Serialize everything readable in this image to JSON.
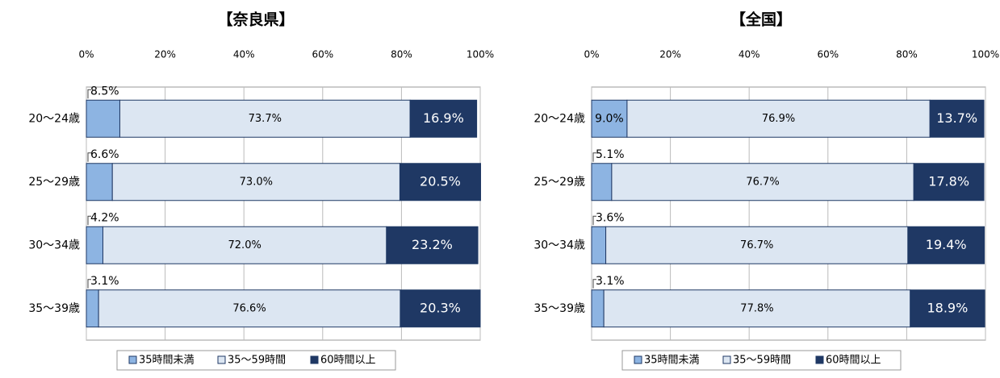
{
  "chart_data": [
    {
      "type": "bar",
      "orientation": "horizontal",
      "stacked": true,
      "title": "【奈良県】",
      "categories": [
        "20～24歳",
        "25～29歳",
        "30～34歳",
        "35～39歳"
      ],
      "xlim": [
        0,
        100
      ],
      "xticks": [
        {
          "value": 0,
          "label": "0%"
        },
        {
          "value": 20,
          "label": "20%"
        },
        {
          "value": 40,
          "label": "40%"
        },
        {
          "value": 60,
          "label": "60%"
        },
        {
          "value": 80,
          "label": "80%"
        },
        {
          "value": 100,
          "label": "100%"
        }
      ],
      "grid": true,
      "legend": "bottom",
      "series": [
        {
          "name": "35時間未満",
          "color": "#8db4e2",
          "values": [
            8.5,
            6.6,
            4.2,
            3.1
          ],
          "value_labels": [
            "8.5%",
            "6.6%",
            "4.2%",
            "3.1%"
          ]
        },
        {
          "name": "35～59時間",
          "color": "#dce6f2",
          "values": [
            73.7,
            73.0,
            72.0,
            76.6
          ],
          "value_labels": [
            "73.7%",
            "73.0%",
            "72.0%",
            "76.6%"
          ]
        },
        {
          "name": "60時間以上",
          "color": "#1f3864",
          "values": [
            16.9,
            20.5,
            23.2,
            20.3
          ],
          "value_labels": [
            "16.9%",
            "20.5%",
            "23.2%",
            "20.3%"
          ]
        }
      ]
    },
    {
      "type": "bar",
      "orientation": "horizontal",
      "stacked": true,
      "title": "【全国】",
      "categories": [
        "20～24歳",
        "25～29歳",
        "30～34歳",
        "35～39歳"
      ],
      "xlim": [
        0,
        100
      ],
      "xticks": [
        {
          "value": 0,
          "label": "0%"
        },
        {
          "value": 20,
          "label": "20%"
        },
        {
          "value": 40,
          "label": "40%"
        },
        {
          "value": 60,
          "label": "60%"
        },
        {
          "value": 80,
          "label": "80%"
        },
        {
          "value": 100,
          "label": "100%"
        }
      ],
      "grid": true,
      "legend": "bottom",
      "series": [
        {
          "name": "35時間未満",
          "color": "#8db4e2",
          "values": [
            9.0,
            5.1,
            3.6,
            3.1
          ],
          "value_labels": [
            "9.0%",
            "5.1%",
            "3.6%",
            "3.1%"
          ]
        },
        {
          "name": "35～59時間",
          "color": "#dce6f2",
          "values": [
            76.9,
            76.7,
            76.7,
            77.8
          ],
          "value_labels": [
            "76.9%",
            "76.7%",
            "76.7%",
            "77.8%"
          ]
        },
        {
          "name": "60時間以上",
          "color": "#1f3864",
          "values": [
            13.7,
            17.8,
            19.4,
            18.9
          ],
          "value_labels": [
            "13.7%",
            "17.8%",
            "19.4%",
            "18.9%"
          ]
        }
      ]
    }
  ]
}
